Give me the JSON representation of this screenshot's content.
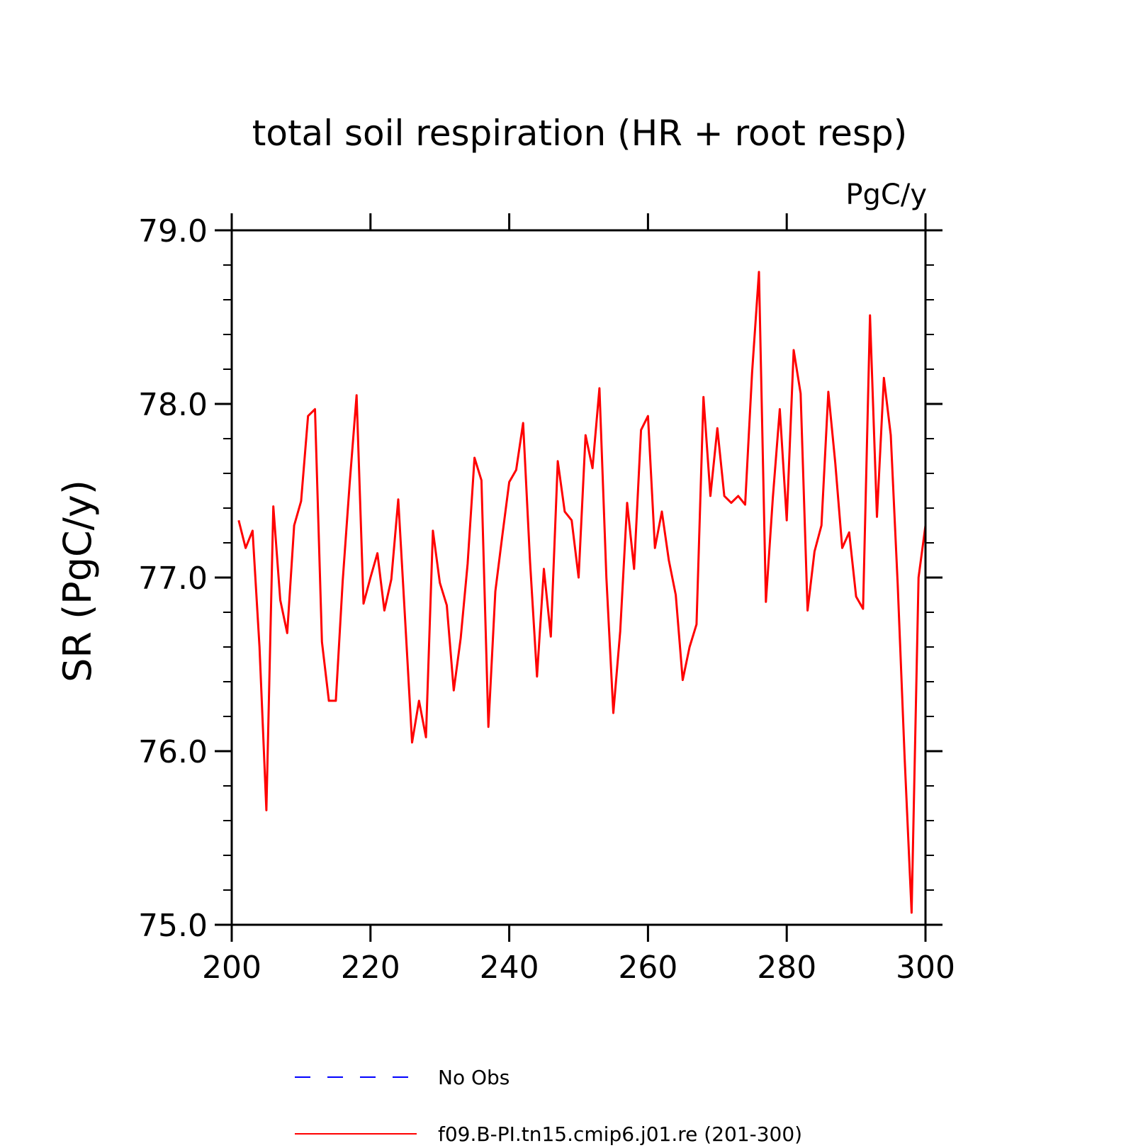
{
  "chart_data": {
    "type": "line",
    "title": "total soil respiration (HR + root resp)",
    "units_label": "PgC/y",
    "ylabel": "SR  (PgC/y)",
    "xlabel": "",
    "xlim": [
      200,
      300
    ],
    "ylim": [
      75.0,
      79.0
    ],
    "x_ticks": [
      "200",
      "220",
      "240",
      "260",
      "280",
      "300"
    ],
    "y_ticks": [
      "75.0",
      "76.0",
      "77.0",
      "78.0",
      "79.0"
    ],
    "grid": false,
    "legend_position": "bottom",
    "legend": [
      {
        "label": "No Obs",
        "color": "#0000ff",
        "style": "dashed"
      },
      {
        "label": "f09.B-PI.tn15.cmip6.j01.re (201-300)",
        "color": "#ff0000",
        "style": "solid"
      }
    ],
    "series": [
      {
        "name": "f09.B-PI.tn15.cmip6.j01.re (201-300)",
        "color": "#ff0000",
        "x": [
          201,
          202,
          203,
          204,
          205,
          206,
          207,
          208,
          209,
          210,
          211,
          212,
          213,
          214,
          215,
          216,
          217,
          218,
          219,
          220,
          221,
          222,
          223,
          224,
          225,
          226,
          227,
          228,
          229,
          230,
          231,
          232,
          233,
          234,
          235,
          236,
          237,
          238,
          239,
          240,
          241,
          242,
          243,
          244,
          245,
          246,
          247,
          248,
          249,
          250,
          251,
          252,
          253,
          254,
          255,
          256,
          257,
          258,
          259,
          260,
          261,
          262,
          263,
          264,
          265,
          266,
          267,
          268,
          269,
          270,
          271,
          272,
          273,
          274,
          275,
          276,
          277,
          278,
          279,
          280,
          281,
          282,
          283,
          284,
          285,
          286,
          287,
          288,
          289,
          290,
          291,
          292,
          293,
          294,
          295,
          296,
          297,
          298,
          299,
          300
        ],
        "values": [
          77.33,
          77.17,
          77.27,
          76.6,
          75.66,
          77.41,
          76.87,
          76.68,
          77.3,
          77.44,
          77.93,
          77.97,
          76.63,
          76.29,
          76.29,
          76.98,
          77.54,
          78.05,
          76.85,
          77.0,
          77.14,
          76.81,
          76.99,
          77.45,
          76.75,
          76.05,
          76.29,
          76.08,
          77.27,
          76.97,
          76.84,
          76.35,
          76.65,
          77.08,
          77.69,
          77.56,
          76.14,
          76.92,
          77.24,
          77.55,
          77.62,
          77.89,
          77.09,
          76.43,
          77.05,
          76.66,
          77.67,
          77.38,
          77.33,
          77.0,
          77.82,
          77.63,
          78.09,
          77.0,
          76.22,
          76.69,
          77.43,
          77.05,
          77.85,
          77.93,
          77.17,
          77.38,
          77.1,
          76.9,
          76.41,
          76.6,
          76.73,
          78.04,
          77.47,
          77.86,
          77.47,
          77.43,
          77.47,
          77.42,
          78.18,
          78.76,
          76.86,
          77.46,
          77.97,
          77.33,
          78.31,
          78.06,
          76.81,
          77.15,
          77.3,
          78.07,
          77.66,
          77.17,
          77.26,
          76.89,
          76.82,
          78.51,
          77.35,
          78.15,
          77.82,
          76.96,
          75.96,
          75.07,
          77.0,
          77.3
        ]
      }
    ]
  }
}
